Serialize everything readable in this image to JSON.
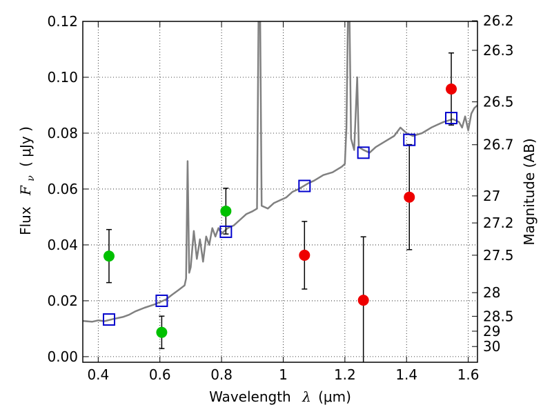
{
  "chart_data": {
    "type": "scatter",
    "xlabel_prefix": "Wavelength",
    "xlabel_symbol": "λ",
    "xlabel_unit": "(μm)",
    "ylabel_prefix": "Flux",
    "ylabel_symbol": "F",
    "ylabel_subscript": "ν",
    "ylabel_unit": "( μJy )",
    "y2label": "Magnitude (AB)",
    "xlim": [
      0.35,
      1.63
    ],
    "ylim": [
      -0.002,
      0.12
    ],
    "grid": true,
    "x_ticks": [
      0.4,
      0.6,
      0.8,
      1.0,
      1.2,
      1.4,
      1.6
    ],
    "x_tick_labels": [
      "0.4",
      "0.6",
      "0.8",
      "1",
      "1.2",
      "1.4",
      "1.6"
    ],
    "y_ticks": [
      0.0,
      0.02,
      0.04,
      0.06,
      0.08,
      0.1,
      0.12
    ],
    "y_tick_labels": [
      "0.00",
      "0.02",
      "0.04",
      "0.06",
      "0.08",
      "0.10",
      "0.12"
    ],
    "mag_ticks": [
      26.2,
      26.3,
      26.5,
      26.7,
      27,
      27.2,
      27.5,
      28,
      28.5,
      29,
      30
    ],
    "mag_tick_labels": [
      "26.2",
      "26.3",
      "26.5",
      "26.7",
      "27",
      "27.2",
      "27.5",
      "28",
      "28.5",
      "29",
      "30"
    ],
    "colors": {
      "green": "#00c000",
      "red": "#ee0000",
      "blue": "#0000cc",
      "sed": "#808080"
    },
    "series": [
      {
        "marker": "circle",
        "color": "#00c000",
        "points": [
          {
            "x": 0.435,
            "y": 0.036,
            "err": 0.0095
          },
          {
            "x": 0.606,
            "y": 0.0087,
            "err": 0.0058
          },
          {
            "x": 0.814,
            "y": 0.0521,
            "err": 0.0082
          }
        ]
      },
      {
        "marker": "circle",
        "color": "#ee0000",
        "points": [
          {
            "x": 1.069,
            "y": 0.0363,
            "err": 0.0121
          },
          {
            "x": 1.26,
            "y": 0.0202,
            "err": 0.0227
          },
          {
            "x": 1.409,
            "y": 0.0571,
            "err": 0.0188
          },
          {
            "x": 1.545,
            "y": 0.0958,
            "err": 0.0129
          }
        ]
      },
      {
        "marker": "open-square",
        "color": "#0000cc",
        "points": [
          {
            "x": 0.435,
            "y": 0.0133
          },
          {
            "x": 0.606,
            "y": 0.02
          },
          {
            "x": 0.814,
            "y": 0.0447
          },
          {
            "x": 1.069,
            "y": 0.0611
          },
          {
            "x": 1.26,
            "y": 0.073
          },
          {
            "x": 1.409,
            "y": 0.0776
          },
          {
            "x": 1.545,
            "y": 0.0854
          }
        ]
      },
      {
        "marker": "line",
        "color": "#808080",
        "points": [
          [
            0.35,
            0.0128
          ],
          [
            0.38,
            0.0125
          ],
          [
            0.4,
            0.013
          ],
          [
            0.42,
            0.0127
          ],
          [
            0.45,
            0.0135
          ],
          [
            0.48,
            0.0142
          ],
          [
            0.5,
            0.015
          ],
          [
            0.52,
            0.0162
          ],
          [
            0.55,
            0.0175
          ],
          [
            0.58,
            0.0186
          ],
          [
            0.6,
            0.0195
          ],
          [
            0.62,
            0.0205
          ],
          [
            0.64,
            0.0222
          ],
          [
            0.66,
            0.0238
          ],
          [
            0.68,
            0.0255
          ],
          [
            0.685,
            0.028
          ],
          [
            0.69,
            0.07
          ],
          [
            0.695,
            0.03
          ],
          [
            0.7,
            0.032
          ],
          [
            0.71,
            0.045
          ],
          [
            0.72,
            0.035
          ],
          [
            0.73,
            0.042
          ],
          [
            0.74,
            0.034
          ],
          [
            0.75,
            0.043
          ],
          [
            0.76,
            0.04
          ],
          [
            0.77,
            0.046
          ],
          [
            0.78,
            0.043
          ],
          [
            0.79,
            0.046
          ],
          [
            0.8,
            0.044
          ],
          [
            0.82,
            0.046
          ],
          [
            0.84,
            0.047
          ],
          [
            0.86,
            0.049
          ],
          [
            0.88,
            0.051
          ],
          [
            0.9,
            0.052
          ],
          [
            0.915,
            0.053
          ],
          [
            0.92,
            0.122
          ],
          [
            0.925,
            0.122
          ],
          [
            0.93,
            0.054
          ],
          [
            0.95,
            0.053
          ],
          [
            0.97,
            0.055
          ],
          [
            0.99,
            0.056
          ],
          [
            1.01,
            0.057
          ],
          [
            1.03,
            0.059
          ],
          [
            1.05,
            0.06
          ],
          [
            1.08,
            0.062
          ],
          [
            1.1,
            0.063
          ],
          [
            1.13,
            0.065
          ],
          [
            1.16,
            0.066
          ],
          [
            1.19,
            0.068
          ],
          [
            1.2,
            0.069
          ],
          [
            1.205,
            0.082
          ],
          [
            1.21,
            0.122
          ],
          [
            1.215,
            0.122
          ],
          [
            1.22,
            0.078
          ],
          [
            1.23,
            0.074
          ],
          [
            1.24,
            0.1
          ],
          [
            1.245,
            0.075
          ],
          [
            1.26,
            0.074
          ],
          [
            1.28,
            0.073
          ],
          [
            1.3,
            0.075
          ],
          [
            1.33,
            0.077
          ],
          [
            1.36,
            0.079
          ],
          [
            1.38,
            0.082
          ],
          [
            1.4,
            0.08
          ],
          [
            1.42,
            0.079
          ],
          [
            1.45,
            0.08
          ],
          [
            1.48,
            0.082
          ],
          [
            1.5,
            0.083
          ],
          [
            1.52,
            0.084
          ],
          [
            1.55,
            0.085
          ],
          [
            1.57,
            0.084
          ],
          [
            1.58,
            0.082
          ],
          [
            1.59,
            0.086
          ],
          [
            1.6,
            0.081
          ],
          [
            1.61,
            0.087
          ],
          [
            1.62,
            0.089
          ],
          [
            1.63,
            0.09
          ]
        ]
      }
    ]
  }
}
